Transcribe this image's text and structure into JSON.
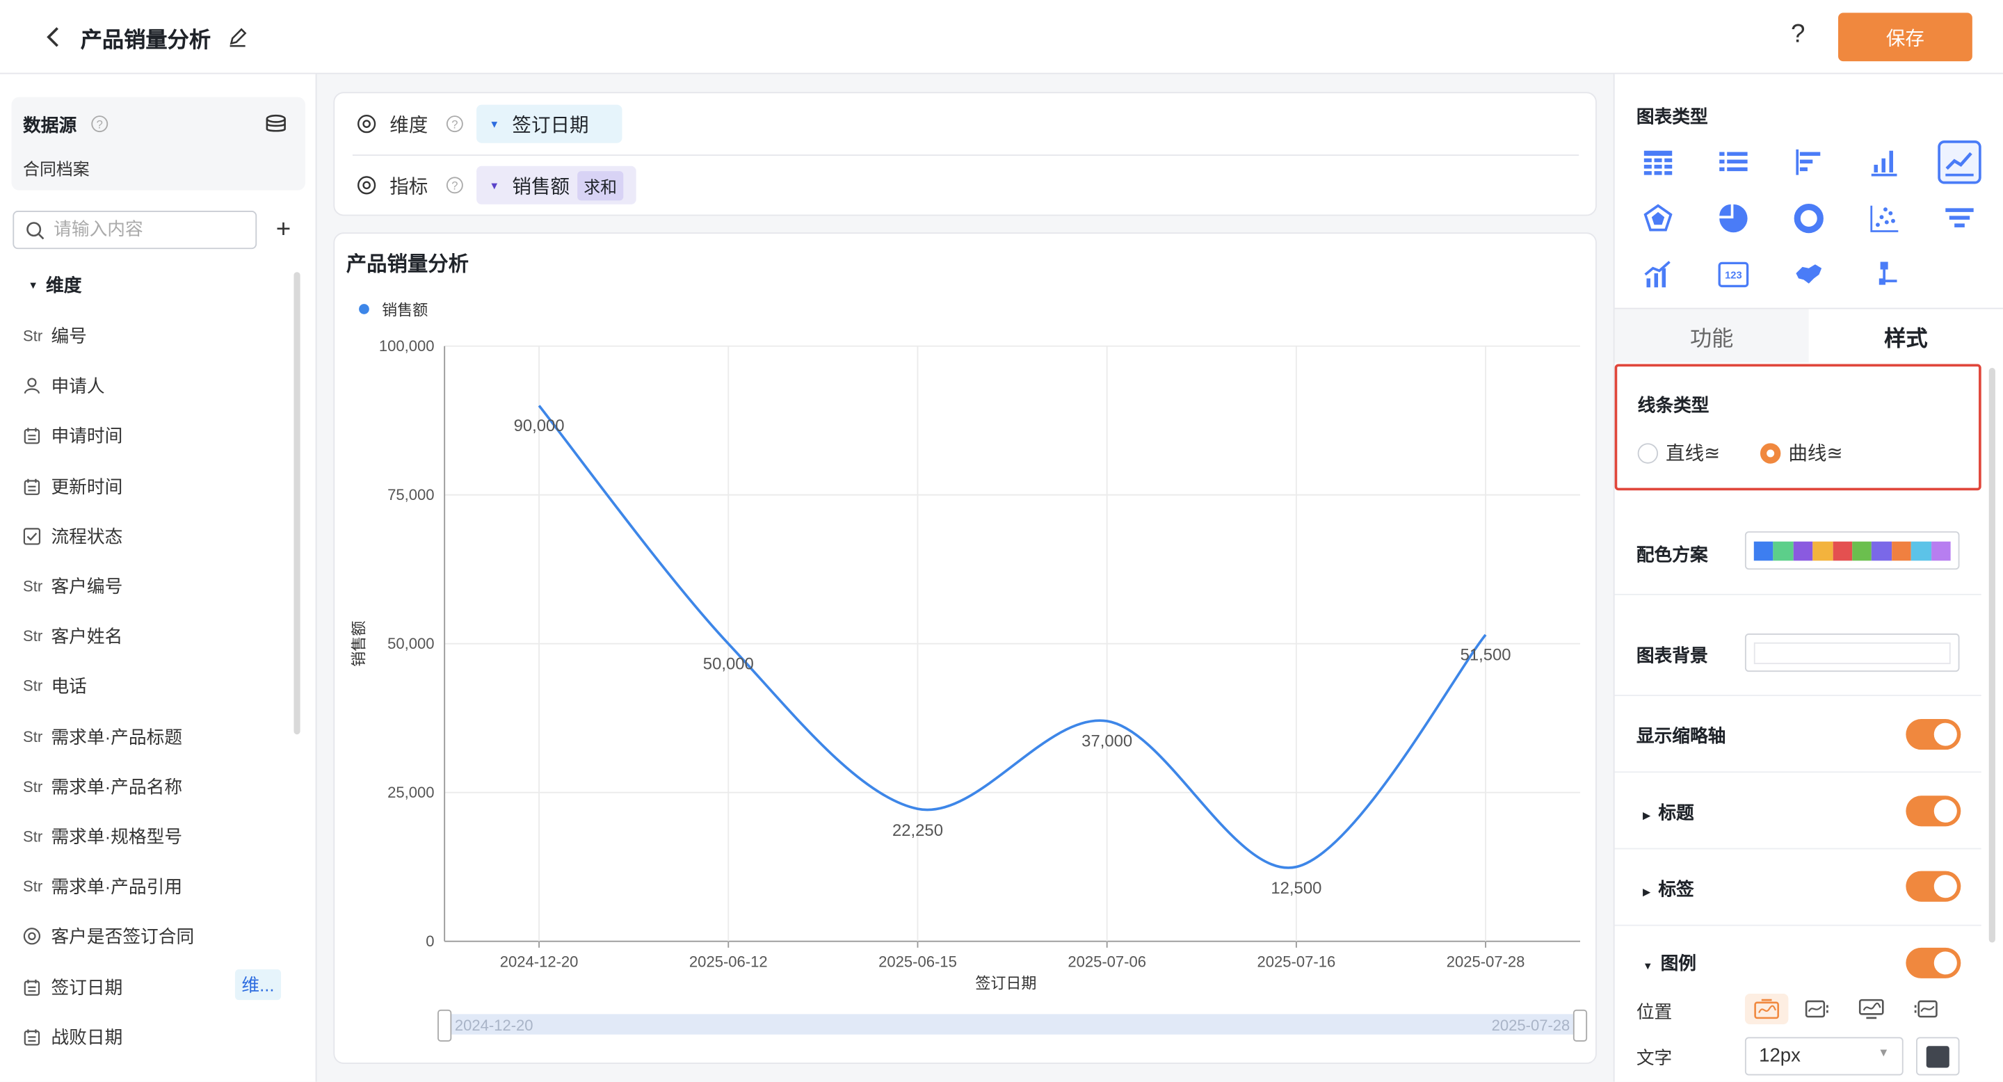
{
  "header": {
    "title": "产品销量分析",
    "help": "?",
    "save_label": "保存"
  },
  "datasource": {
    "title": "数据源",
    "name": "合同档案"
  },
  "search": {
    "placeholder": "请输入内容"
  },
  "dimensions": {
    "heading": "维度",
    "fields": [
      {
        "type": "Str",
        "icon": "string-icon",
        "label": "编号"
      },
      {
        "type": "user",
        "icon": "user-icon",
        "label": "申请人"
      },
      {
        "type": "date",
        "icon": "calendar-icon",
        "label": "申请时间"
      },
      {
        "type": "date",
        "icon": "calendar-icon",
        "label": "更新时间"
      },
      {
        "type": "check",
        "icon": "checkbox-icon",
        "label": "流程状态"
      },
      {
        "type": "Str",
        "icon": "string-icon",
        "label": "客户编号"
      },
      {
        "type": "Str",
        "icon": "string-icon",
        "label": "客户姓名"
      },
      {
        "type": "Str",
        "icon": "string-icon",
        "label": "电话"
      },
      {
        "type": "Str",
        "icon": "string-icon",
        "label": "需求单·产品标题"
      },
      {
        "type": "Str",
        "icon": "string-icon",
        "label": "需求单·产品名称"
      },
      {
        "type": "Str",
        "icon": "string-icon",
        "label": "需求单·规格型号"
      },
      {
        "type": "Str",
        "icon": "string-icon",
        "label": "需求单·产品引用"
      },
      {
        "type": "radio",
        "icon": "radio-icon",
        "label": "客户是否签订合同"
      },
      {
        "type": "date",
        "icon": "calendar-icon",
        "label": "签订日期"
      },
      {
        "type": "date",
        "icon": "calendar-icon",
        "label": "战败日期"
      }
    ],
    "used_badge": "维..."
  },
  "config": {
    "dimension_label": "维度",
    "dimension_value": "签订日期",
    "metric_label": "指标",
    "metric_value": "销售额",
    "metric_agg": "求和"
  },
  "chart_data": {
    "type": "line",
    "title": "产品销量分析",
    "legend": [
      "销售额"
    ],
    "legend_position": "top-left",
    "xlabel": "签订日期",
    "ylabel": "销售额",
    "categories": [
      "2024-12-20",
      "2025-06-12",
      "2025-06-15",
      "2025-07-06",
      "2025-07-16",
      "2025-07-28"
    ],
    "series": [
      {
        "name": "销售额",
        "values": [
          90000,
          50000,
          22250,
          37000,
          12500,
          51500
        ],
        "color": "#3d86e8"
      }
    ],
    "data_labels": [
      "90,000",
      "50,000",
      "22,250",
      "37,000",
      "12,500",
      "51,500"
    ],
    "y_ticks": [
      "0",
      "25,000",
      "50,000",
      "75,000",
      "100,000"
    ],
    "ylim": [
      0,
      100000
    ],
    "smooth": true,
    "grid": true,
    "zoom_range": [
      "2024-12-20",
      "2025-07-28"
    ]
  },
  "right_panel": {
    "chart_type_title": "图表类型",
    "tabs": [
      "功能",
      "样式"
    ],
    "line_type": {
      "title": "线条类型",
      "options": [
        "直线≊",
        "曲线≊"
      ],
      "selected": "曲线≊"
    },
    "palette_label": "配色方案",
    "palette_colors": [
      "#3d7ef0",
      "#5ccf8a",
      "#8a5ae0",
      "#f3b33d",
      "#e45050",
      "#6bbf4e",
      "#7a68e8",
      "#f08040",
      "#5cc3e8",
      "#b77ef0"
    ],
    "background_label": "图表背景",
    "thumbnail_axis_label": "显示缩略轴",
    "title_label": "标题",
    "tag_label": "标签",
    "legend_label": "图例",
    "position_label": "位置",
    "text_label": "文字",
    "font_size": "12px",
    "text_color": "#41464f"
  }
}
